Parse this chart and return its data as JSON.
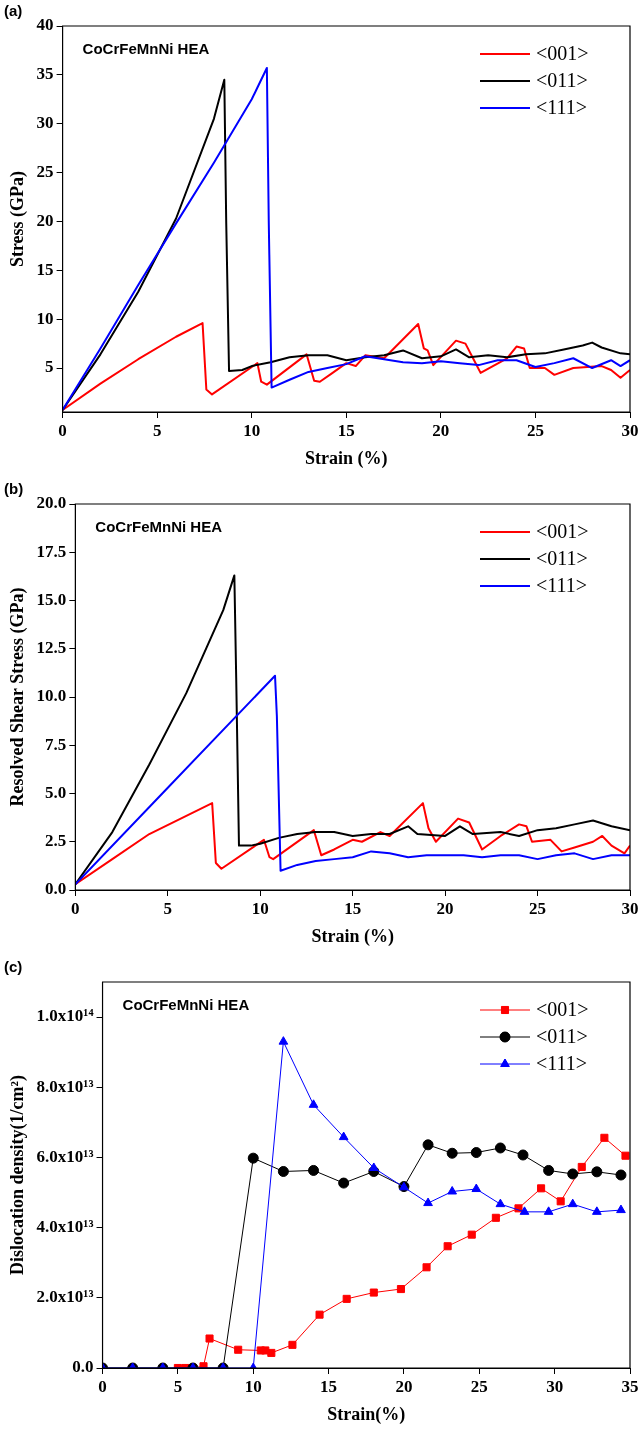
{
  "chart_data": [
    {
      "type": "line",
      "xlabel": "Strain (%)",
      "ylabel": "Stress (GPa)",
      "annotations": [
        "(a)",
        "CoCrFeMnNi HEA"
      ],
      "legend": "top right",
      "marker": "none",
      "grid": false,
      "xlim": [
        0,
        30
      ],
      "xticks": [
        0,
        5,
        10,
        15,
        20,
        25,
        30
      ],
      "ylim": [
        0.5,
        40
      ],
      "yticks": [
        5,
        10,
        15,
        20,
        25,
        30,
        35,
        40
      ],
      "series": [
        {
          "name": "<001>",
          "color": "#ff0000",
          "x": [
            0,
            2,
            4,
            6,
            7.4,
            7.6,
            7.9,
            10.3,
            10.5,
            10.8,
            12.9,
            13.3,
            13.6,
            14.2,
            15,
            15.5,
            16,
            17,
            18.8,
            19.1,
            19.3,
            19.6,
            20.8,
            21.3,
            21.7,
            22.1,
            23.5,
            24,
            24.4,
            24.7,
            25.5,
            26,
            27,
            28.5,
            29,
            29.5,
            30
          ],
          "values": [
            0.7,
            3.4,
            5.9,
            8.2,
            9.6,
            2.8,
            2.3,
            5.5,
            3.6,
            3.3,
            6.4,
            3.7,
            3.6,
            4.4,
            5.5,
            5.2,
            6.3,
            6,
            9.5,
            7,
            6.8,
            5.3,
            7.8,
            7.5,
            6,
            4.5,
            6,
            7.2,
            7,
            5,
            5,
            4.3,
            5,
            5.2,
            4.8,
            4,
            4.8
          ]
        },
        {
          "name": "<011>",
          "color": "#000000",
          "x": [
            0,
            2,
            4,
            6,
            8,
            8.55,
            8.65,
            8.8,
            9.5,
            10,
            11,
            12,
            13,
            14,
            15,
            16,
            17,
            18,
            19,
            20,
            20.8,
            21.5,
            22.5,
            23.5,
            24.5,
            25.5,
            26.5,
            27.5,
            28,
            28.5,
            29.5,
            30
          ],
          "values": [
            0.7,
            6.4,
            12.8,
            20.3,
            30.5,
            34.5,
            20,
            4.7,
            4.8,
            5.2,
            5.6,
            6.1,
            6.3,
            6.3,
            5.8,
            6.1,
            6.3,
            6.8,
            6,
            6.2,
            6.9,
            6.1,
            6.3,
            6.1,
            6.4,
            6.5,
            6.9,
            7.3,
            7.6,
            7.1,
            6.5,
            6.4
          ]
        },
        {
          "name": "<111>",
          "color": "#0000ff",
          "x": [
            0,
            2,
            4,
            6,
            8,
            10,
            10.8,
            10.9,
            11.05,
            12,
            13,
            14,
            15,
            16,
            17,
            18,
            19,
            20,
            21,
            22,
            23,
            24,
            25,
            26,
            27,
            28,
            29,
            29.5,
            30
          ],
          "values": [
            0.7,
            7,
            13.5,
            19.8,
            26,
            32.5,
            35.7,
            20,
            3,
            3.8,
            4.6,
            5,
            5.4,
            6.2,
            5.9,
            5.6,
            5.5,
            5.7,
            5.5,
            5.3,
            5.8,
            5.8,
            5.1,
            5.5,
            6,
            5,
            5.8,
            5.2,
            5.8
          ]
        }
      ]
    },
    {
      "type": "line",
      "xlabel": "Strain (%)",
      "ylabel": "Resolved Shear Stress (GPa)",
      "annotations": [
        "(b)",
        "CoCrFeMnNi HEA"
      ],
      "legend": "top right",
      "marker": "none",
      "grid": false,
      "xlim": [
        0,
        30
      ],
      "xticks": [
        0,
        5,
        10,
        15,
        20,
        25,
        30
      ],
      "ylim": [
        0,
        20
      ],
      "yticks": [
        {
          "value": 0,
          "label": "0.0"
        },
        {
          "value": 2.5,
          "label": "2.5"
        },
        {
          "value": 5,
          "label": "5.0"
        },
        {
          "value": 7.5,
          "label": "7.5"
        },
        {
          "value": 10,
          "label": "10.0"
        },
        {
          "value": 12.5,
          "label": "12.5"
        },
        {
          "value": 15,
          "label": "15.0"
        },
        {
          "value": 17.5,
          "label": "17.5"
        },
        {
          "value": 20,
          "label": "20.0"
        }
      ],
      "series": [
        {
          "name": "<001>",
          "color": "#ff0000",
          "x": [
            0,
            2,
            4,
            7.4,
            7.6,
            7.9,
            10.2,
            10.5,
            10.7,
            12.9,
            13.3,
            14,
            15,
            15.5,
            16.5,
            17,
            18.8,
            19.1,
            19.5,
            20.7,
            21.3,
            22,
            23,
            24,
            24.4,
            24.7,
            25.7,
            26.3,
            27,
            28,
            28.5,
            29,
            29.7,
            30
          ],
          "values": [
            0.3,
            1.6,
            2.9,
            4.5,
            1.4,
            1.1,
            2.6,
            1.7,
            1.6,
            3.1,
            1.8,
            2.1,
            2.6,
            2.5,
            3,
            2.8,
            4.5,
            3.2,
            2.5,
            3.7,
            3.5,
            2.1,
            2.8,
            3.4,
            3.3,
            2.5,
            2.6,
            2,
            2.2,
            2.5,
            2.8,
            2.3,
            1.9,
            2.3
          ]
        },
        {
          "name": "<011>",
          "color": "#000000",
          "x": [
            0,
            2,
            4,
            6,
            8,
            8.6,
            8.7,
            8.85,
            9.5,
            10,
            11,
            12,
            13,
            14,
            15,
            16,
            17,
            18,
            18.5,
            20,
            20.8,
            21.5,
            23,
            24,
            25,
            26,
            27,
            28,
            29,
            30
          ],
          "values": [
            0.3,
            3,
            6.5,
            10.2,
            14.5,
            16.3,
            11,
            2.3,
            2.3,
            2.4,
            2.7,
            2.9,
            3,
            3,
            2.8,
            2.9,
            2.9,
            3.3,
            2.9,
            2.8,
            3.3,
            2.9,
            3,
            2.8,
            3.1,
            3.2,
            3.4,
            3.6,
            3.3,
            3.1
          ]
        },
        {
          "name": "<111>",
          "color": "#0000ff",
          "x": [
            0,
            5,
            10.8,
            10.9,
            11.1,
            12,
            13,
            14,
            15,
            16,
            17,
            18,
            19,
            20,
            21,
            22,
            23,
            24,
            25,
            26,
            27,
            28,
            29,
            30
          ],
          "values": [
            0.3,
            5.3,
            11.1,
            9,
            1,
            1.3,
            1.5,
            1.6,
            1.7,
            2,
            1.9,
            1.7,
            1.8,
            1.8,
            1.8,
            1.7,
            1.8,
            1.8,
            1.6,
            1.8,
            1.9,
            1.6,
            1.8,
            1.8
          ]
        }
      ]
    },
    {
      "type": "line",
      "xlabel": "Strain(%)",
      "ylabel": "Dislocation density(1/cm²)",
      "annotations": [
        "(c)",
        "CoCrFeMnNi HEA"
      ],
      "legend": "top right",
      "grid": false,
      "xlim": [
        0,
        35
      ],
      "xticks": [
        0,
        5,
        10,
        15,
        20,
        25,
        30,
        35
      ],
      "ylim": [
        0,
        110000000000000.0
      ],
      "yticks": [
        {
          "value": 0,
          "label": "0.0"
        },
        {
          "value": 20000000000000.0,
          "label": "2.0x10¹³"
        },
        {
          "value": 40000000000000.0,
          "label": "4.0x10¹³"
        },
        {
          "value": 60000000000000.0,
          "label": "6.0x10¹³"
        },
        {
          "value": 80000000000000.0,
          "label": "8.0x10¹³"
        },
        {
          "value": 100000000000000.0,
          "label": "1.0x10¹⁴"
        }
      ],
      "series": [
        {
          "name": "<001>",
          "color": "#ff0000",
          "marker": "square",
          "x": [
            5,
            5.5,
            6,
            6.7,
            7.1,
            9,
            10.5,
            10.8,
            11.2,
            12.6,
            14.4,
            16.2,
            18,
            19.8,
            21.5,
            22.9,
            24.5,
            26.1,
            27.6,
            29.1,
            30.4,
            31.8,
            33.3,
            34.7
          ],
          "values": [
            0,
            0,
            0,
            500000000000.0,
            8400000000000.0,
            5200000000000.0,
            5000000000000.0,
            5000000000000.0,
            4300000000000.0,
            6600000000000.0,
            15200000000000.0,
            19700000000000.0,
            21500000000000.0,
            22500000000000.0,
            28700000000000.0,
            34700000000000.0,
            38000000000000.0,
            42800000000000.0,
            45500000000000.0,
            51200000000000.0,
            47500000000000.0,
            57300000000000.0,
            65600000000000.0,
            60500000000000.0
          ]
        },
        {
          "name": "<011>",
          "color": "#000000",
          "marker": "circle",
          "x": [
            0,
            2,
            4,
            6,
            8,
            10,
            12,
            14,
            16,
            18,
            20,
            21.6,
            23.2,
            24.8,
            26.4,
            27.9,
            29.6,
            31.2,
            32.8,
            34.4
          ],
          "values": [
            0,
            0,
            0,
            0,
            0,
            59800000000000.0,
            56000000000000.0,
            56300000000000.0,
            52700000000000.0,
            56000000000000.0,
            51700000000000.0,
            63600000000000.0,
            61200000000000.0,
            61400000000000.0,
            62700000000000.0,
            60700000000000.0,
            56300000000000.0,
            55300000000000.0,
            55900000000000.0,
            55000000000000.0
          ]
        },
        {
          "name": "<111>",
          "color": "#0000ff",
          "marker": "triangle",
          "x": [
            0,
            2,
            4,
            6,
            8,
            10,
            12,
            14,
            16,
            18,
            20,
            21.6,
            23.2,
            24.8,
            26.4,
            28,
            29.6,
            31.2,
            32.8,
            34.4
          ],
          "values": [
            0,
            0,
            0,
            0,
            0,
            0,
            93000000000000.0,
            75000000000000.0,
            65800000000000.0,
            57000000000000.0,
            51500000000000.0,
            47000000000000.0,
            50300000000000.0,
            51000000000000.0,
            46700000000000.0,
            44500000000000.0,
            44500000000000.0,
            46700000000000.0,
            44500000000000.0,
            45000000000000.0
          ]
        }
      ]
    }
  ]
}
